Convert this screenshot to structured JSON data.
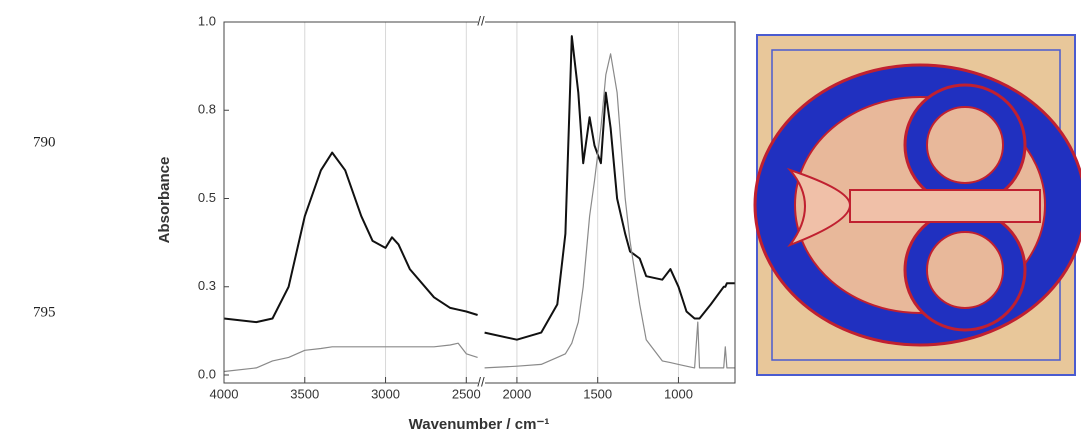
{
  "line_numbers": [
    "790",
    "795"
  ],
  "chart_data": {
    "type": "line",
    "y_label": "Absorbance",
    "x_label": "Wavenumber / cm⁻¹",
    "x": [
      4000,
      3800,
      3700,
      3600,
      3500,
      3400,
      3330,
      3250,
      3150,
      3080,
      3000,
      2960,
      2920,
      2850,
      2700,
      2600,
      2550,
      2500,
      2430,
      2300,
      2200,
      2000,
      1850,
      1750,
      1700,
      1660,
      1620,
      1590,
      1550,
      1520,
      1480,
      1450,
      1420,
      1380,
      1330,
      1300,
      1240,
      1200,
      1100,
      1050,
      1000,
      950,
      900,
      880,
      870,
      800,
      720,
      710,
      700,
      650
    ],
    "series": [
      {
        "color": "#111111",
        "values": [
          0.16,
          0.15,
          0.16,
          0.25,
          0.45,
          0.58,
          0.63,
          0.58,
          0.45,
          0.38,
          0.36,
          0.39,
          0.37,
          0.3,
          0.22,
          0.19,
          0.185,
          0.18,
          0.17,
          null,
          0.12,
          0.1,
          0.12,
          0.2,
          0.4,
          0.96,
          0.8,
          0.6,
          0.73,
          0.65,
          0.6,
          0.8,
          0.7,
          0.5,
          0.4,
          0.35,
          0.33,
          0.28,
          0.27,
          0.3,
          0.25,
          0.18,
          0.16,
          0.16,
          0.16,
          0.2,
          0.25,
          0.25,
          0.26,
          0.26
        ]
      },
      {
        "color": "#8a8a8a",
        "values": [
          0.01,
          0.02,
          0.04,
          0.05,
          0.07,
          0.075,
          0.08,
          0.08,
          0.08,
          0.08,
          0.08,
          0.08,
          0.08,
          0.08,
          0.08,
          0.085,
          0.09,
          0.06,
          0.05,
          null,
          0.02,
          0.025,
          0.03,
          0.05,
          0.06,
          0.09,
          0.15,
          0.25,
          0.45,
          0.55,
          0.7,
          0.85,
          0.91,
          0.8,
          0.5,
          0.38,
          0.2,
          0.1,
          0.04,
          0.035,
          0.03,
          0.025,
          0.02,
          0.15,
          0.02,
          0.02,
          0.02,
          0.08,
          0.02,
          0.02
        ]
      }
    ],
    "xlim": [
      [
        4000,
        2430
      ],
      [
        2200,
        650
      ]
    ],
    "xticks": [
      4000,
      3500,
      3000,
      2500,
      2000,
      1500,
      1000
    ],
    "ylim": [
      0,
      1
    ],
    "yticks": [
      {
        "value": 0,
        "label": "0.0"
      },
      {
        "value": 0.25,
        "label": "0.3"
      },
      {
        "value": 0.5,
        "label": "0.5"
      },
      {
        "value": 0.75,
        "label": "0.8"
      },
      {
        "value": 1,
        "label": "1.0"
      }
    ],
    "grid": true
  }
}
